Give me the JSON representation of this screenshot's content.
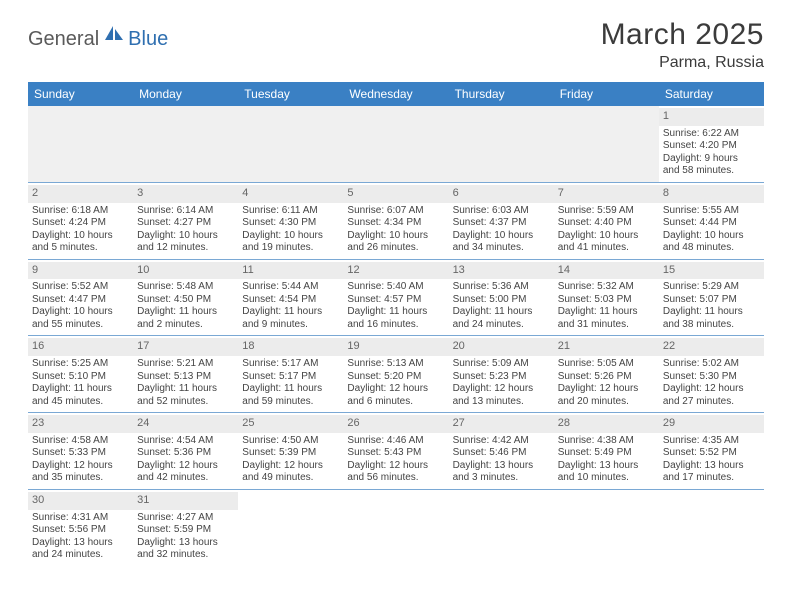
{
  "logo": {
    "part1": "General",
    "part2": "Blue"
  },
  "title": "March 2025",
  "location": "Parma, Russia",
  "colors": {
    "header_bg": "#3a80c4",
    "header_text": "#ffffff",
    "daynum_bg": "#ececec",
    "row_border": "#7aa8d4",
    "logo_gray": "#5a5a5a",
    "logo_blue": "#2f6fb0"
  },
  "weekdays": [
    "Sunday",
    "Monday",
    "Tuesday",
    "Wednesday",
    "Thursday",
    "Friday",
    "Saturday"
  ],
  "days": {
    "1": {
      "sunrise": "Sunrise: 6:22 AM",
      "sunset": "Sunset: 4:20 PM",
      "day1": "Daylight: 9 hours",
      "day2": "and 58 minutes."
    },
    "2": {
      "sunrise": "Sunrise: 6:18 AM",
      "sunset": "Sunset: 4:24 PM",
      "day1": "Daylight: 10 hours",
      "day2": "and 5 minutes."
    },
    "3": {
      "sunrise": "Sunrise: 6:14 AM",
      "sunset": "Sunset: 4:27 PM",
      "day1": "Daylight: 10 hours",
      "day2": "and 12 minutes."
    },
    "4": {
      "sunrise": "Sunrise: 6:11 AM",
      "sunset": "Sunset: 4:30 PM",
      "day1": "Daylight: 10 hours",
      "day2": "and 19 minutes."
    },
    "5": {
      "sunrise": "Sunrise: 6:07 AM",
      "sunset": "Sunset: 4:34 PM",
      "day1": "Daylight: 10 hours",
      "day2": "and 26 minutes."
    },
    "6": {
      "sunrise": "Sunrise: 6:03 AM",
      "sunset": "Sunset: 4:37 PM",
      "day1": "Daylight: 10 hours",
      "day2": "and 34 minutes."
    },
    "7": {
      "sunrise": "Sunrise: 5:59 AM",
      "sunset": "Sunset: 4:40 PM",
      "day1": "Daylight: 10 hours",
      "day2": "and 41 minutes."
    },
    "8": {
      "sunrise": "Sunrise: 5:55 AM",
      "sunset": "Sunset: 4:44 PM",
      "day1": "Daylight: 10 hours",
      "day2": "and 48 minutes."
    },
    "9": {
      "sunrise": "Sunrise: 5:52 AM",
      "sunset": "Sunset: 4:47 PM",
      "day1": "Daylight: 10 hours",
      "day2": "and 55 minutes."
    },
    "10": {
      "sunrise": "Sunrise: 5:48 AM",
      "sunset": "Sunset: 4:50 PM",
      "day1": "Daylight: 11 hours",
      "day2": "and 2 minutes."
    },
    "11": {
      "sunrise": "Sunrise: 5:44 AM",
      "sunset": "Sunset: 4:54 PM",
      "day1": "Daylight: 11 hours",
      "day2": "and 9 minutes."
    },
    "12": {
      "sunrise": "Sunrise: 5:40 AM",
      "sunset": "Sunset: 4:57 PM",
      "day1": "Daylight: 11 hours",
      "day2": "and 16 minutes."
    },
    "13": {
      "sunrise": "Sunrise: 5:36 AM",
      "sunset": "Sunset: 5:00 PM",
      "day1": "Daylight: 11 hours",
      "day2": "and 24 minutes."
    },
    "14": {
      "sunrise": "Sunrise: 5:32 AM",
      "sunset": "Sunset: 5:03 PM",
      "day1": "Daylight: 11 hours",
      "day2": "and 31 minutes."
    },
    "15": {
      "sunrise": "Sunrise: 5:29 AM",
      "sunset": "Sunset: 5:07 PM",
      "day1": "Daylight: 11 hours",
      "day2": "and 38 minutes."
    },
    "16": {
      "sunrise": "Sunrise: 5:25 AM",
      "sunset": "Sunset: 5:10 PM",
      "day1": "Daylight: 11 hours",
      "day2": "and 45 minutes."
    },
    "17": {
      "sunrise": "Sunrise: 5:21 AM",
      "sunset": "Sunset: 5:13 PM",
      "day1": "Daylight: 11 hours",
      "day2": "and 52 minutes."
    },
    "18": {
      "sunrise": "Sunrise: 5:17 AM",
      "sunset": "Sunset: 5:17 PM",
      "day1": "Daylight: 11 hours",
      "day2": "and 59 minutes."
    },
    "19": {
      "sunrise": "Sunrise: 5:13 AM",
      "sunset": "Sunset: 5:20 PM",
      "day1": "Daylight: 12 hours",
      "day2": "and 6 minutes."
    },
    "20": {
      "sunrise": "Sunrise: 5:09 AM",
      "sunset": "Sunset: 5:23 PM",
      "day1": "Daylight: 12 hours",
      "day2": "and 13 minutes."
    },
    "21": {
      "sunrise": "Sunrise: 5:05 AM",
      "sunset": "Sunset: 5:26 PM",
      "day1": "Daylight: 12 hours",
      "day2": "and 20 minutes."
    },
    "22": {
      "sunrise": "Sunrise: 5:02 AM",
      "sunset": "Sunset: 5:30 PM",
      "day1": "Daylight: 12 hours",
      "day2": "and 27 minutes."
    },
    "23": {
      "sunrise": "Sunrise: 4:58 AM",
      "sunset": "Sunset: 5:33 PM",
      "day1": "Daylight: 12 hours",
      "day2": "and 35 minutes."
    },
    "24": {
      "sunrise": "Sunrise: 4:54 AM",
      "sunset": "Sunset: 5:36 PM",
      "day1": "Daylight: 12 hours",
      "day2": "and 42 minutes."
    },
    "25": {
      "sunrise": "Sunrise: 4:50 AM",
      "sunset": "Sunset: 5:39 PM",
      "day1": "Daylight: 12 hours",
      "day2": "and 49 minutes."
    },
    "26": {
      "sunrise": "Sunrise: 4:46 AM",
      "sunset": "Sunset: 5:43 PM",
      "day1": "Daylight: 12 hours",
      "day2": "and 56 minutes."
    },
    "27": {
      "sunrise": "Sunrise: 4:42 AM",
      "sunset": "Sunset: 5:46 PM",
      "day1": "Daylight: 13 hours",
      "day2": "and 3 minutes."
    },
    "28": {
      "sunrise": "Sunrise: 4:38 AM",
      "sunset": "Sunset: 5:49 PM",
      "day1": "Daylight: 13 hours",
      "day2": "and 10 minutes."
    },
    "29": {
      "sunrise": "Sunrise: 4:35 AM",
      "sunset": "Sunset: 5:52 PM",
      "day1": "Daylight: 13 hours",
      "day2": "and 17 minutes."
    },
    "30": {
      "sunrise": "Sunrise: 4:31 AM",
      "sunset": "Sunset: 5:56 PM",
      "day1": "Daylight: 13 hours",
      "day2": "and 24 minutes."
    },
    "31": {
      "sunrise": "Sunrise: 4:27 AM",
      "sunset": "Sunset: 5:59 PM",
      "day1": "Daylight: 13 hours",
      "day2": "and 32 minutes."
    }
  },
  "grid": [
    [
      null,
      null,
      null,
      null,
      null,
      null,
      "1"
    ],
    [
      "2",
      "3",
      "4",
      "5",
      "6",
      "7",
      "8"
    ],
    [
      "9",
      "10",
      "11",
      "12",
      "13",
      "14",
      "15"
    ],
    [
      "16",
      "17",
      "18",
      "19",
      "20",
      "21",
      "22"
    ],
    [
      "23",
      "24",
      "25",
      "26",
      "27",
      "28",
      "29"
    ],
    [
      "30",
      "31",
      null,
      null,
      null,
      null,
      null
    ]
  ]
}
